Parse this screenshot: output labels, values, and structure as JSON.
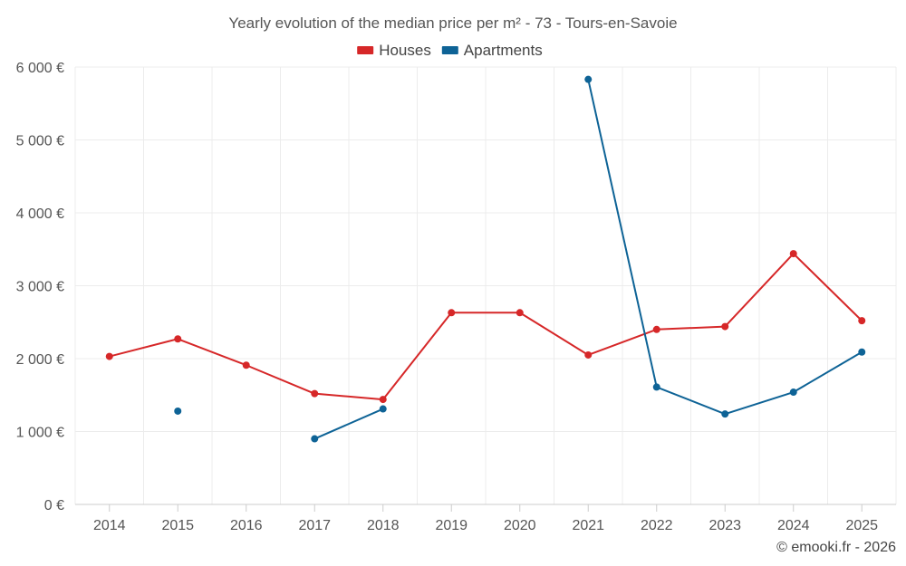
{
  "chart_data": {
    "type": "line",
    "title": "Yearly evolution of the median price per m² - 73 - Tours-en-Savoie",
    "categories": [
      "2014",
      "2015",
      "2016",
      "2017",
      "2018",
      "2019",
      "2020",
      "2021",
      "2022",
      "2023",
      "2024",
      "2025"
    ],
    "y_ticks": [
      0,
      1000,
      2000,
      3000,
      4000,
      5000,
      6000
    ],
    "y_tick_labels": [
      "0 €",
      "1 000 €",
      "2 000 €",
      "3 000 €",
      "4 000 €",
      "5 000 €",
      "6 000 €"
    ],
    "ylim": [
      0,
      6000
    ],
    "grid": true,
    "legend_position": "top-center",
    "series": [
      {
        "name": "Houses",
        "color": "#d62728",
        "values": [
          2030,
          2270,
          1910,
          1520,
          1440,
          2630,
          2630,
          2050,
          2400,
          2440,
          3440,
          2520
        ]
      },
      {
        "name": "Apartments",
        "color": "#0e6396",
        "values": [
          null,
          1280,
          null,
          900,
          1310,
          null,
          null,
          5830,
          1610,
          1240,
          1540,
          2090
        ]
      }
    ]
  },
  "footer": {
    "credit": "© emooki.fr - 2026"
  }
}
